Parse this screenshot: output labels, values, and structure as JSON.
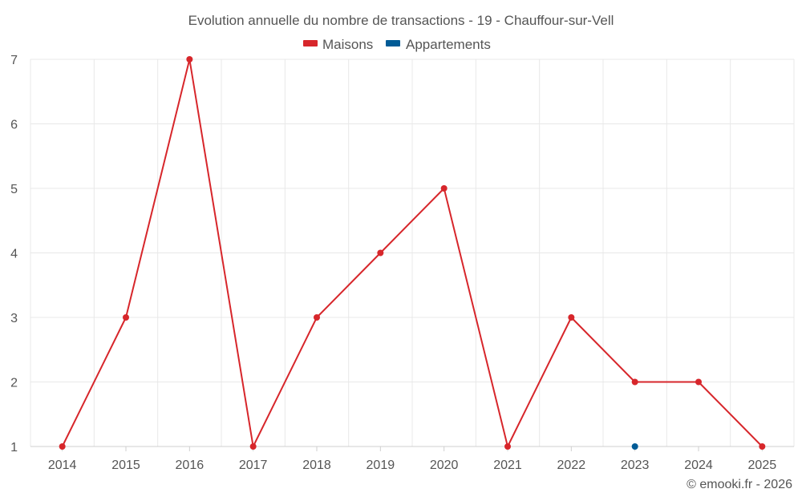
{
  "chart_data": {
    "type": "line",
    "title": "Evolution annuelle du nombre de transactions - 19 - Chauffour-sur-Vell",
    "categories": [
      "2014",
      "2015",
      "2016",
      "2017",
      "2018",
      "2019",
      "2020",
      "2021",
      "2022",
      "2023",
      "2024",
      "2025"
    ],
    "series": [
      {
        "name": "Maisons",
        "color": "#d7262b",
        "values": [
          1,
          3,
          7,
          1,
          3,
          4,
          5,
          1,
          3,
          2,
          2,
          1
        ]
      },
      {
        "name": "Appartements",
        "color": "#005b96",
        "values": [
          null,
          null,
          null,
          null,
          null,
          null,
          null,
          null,
          null,
          1,
          null,
          null
        ]
      }
    ],
    "yticks": [
      1,
      2,
      3,
      4,
      5,
      6,
      7
    ],
    "ylim": [
      1,
      7
    ],
    "legend": "top-center",
    "grid": true,
    "xlabel": "",
    "ylabel": ""
  },
  "credit": "© emooki.fr - 2026"
}
